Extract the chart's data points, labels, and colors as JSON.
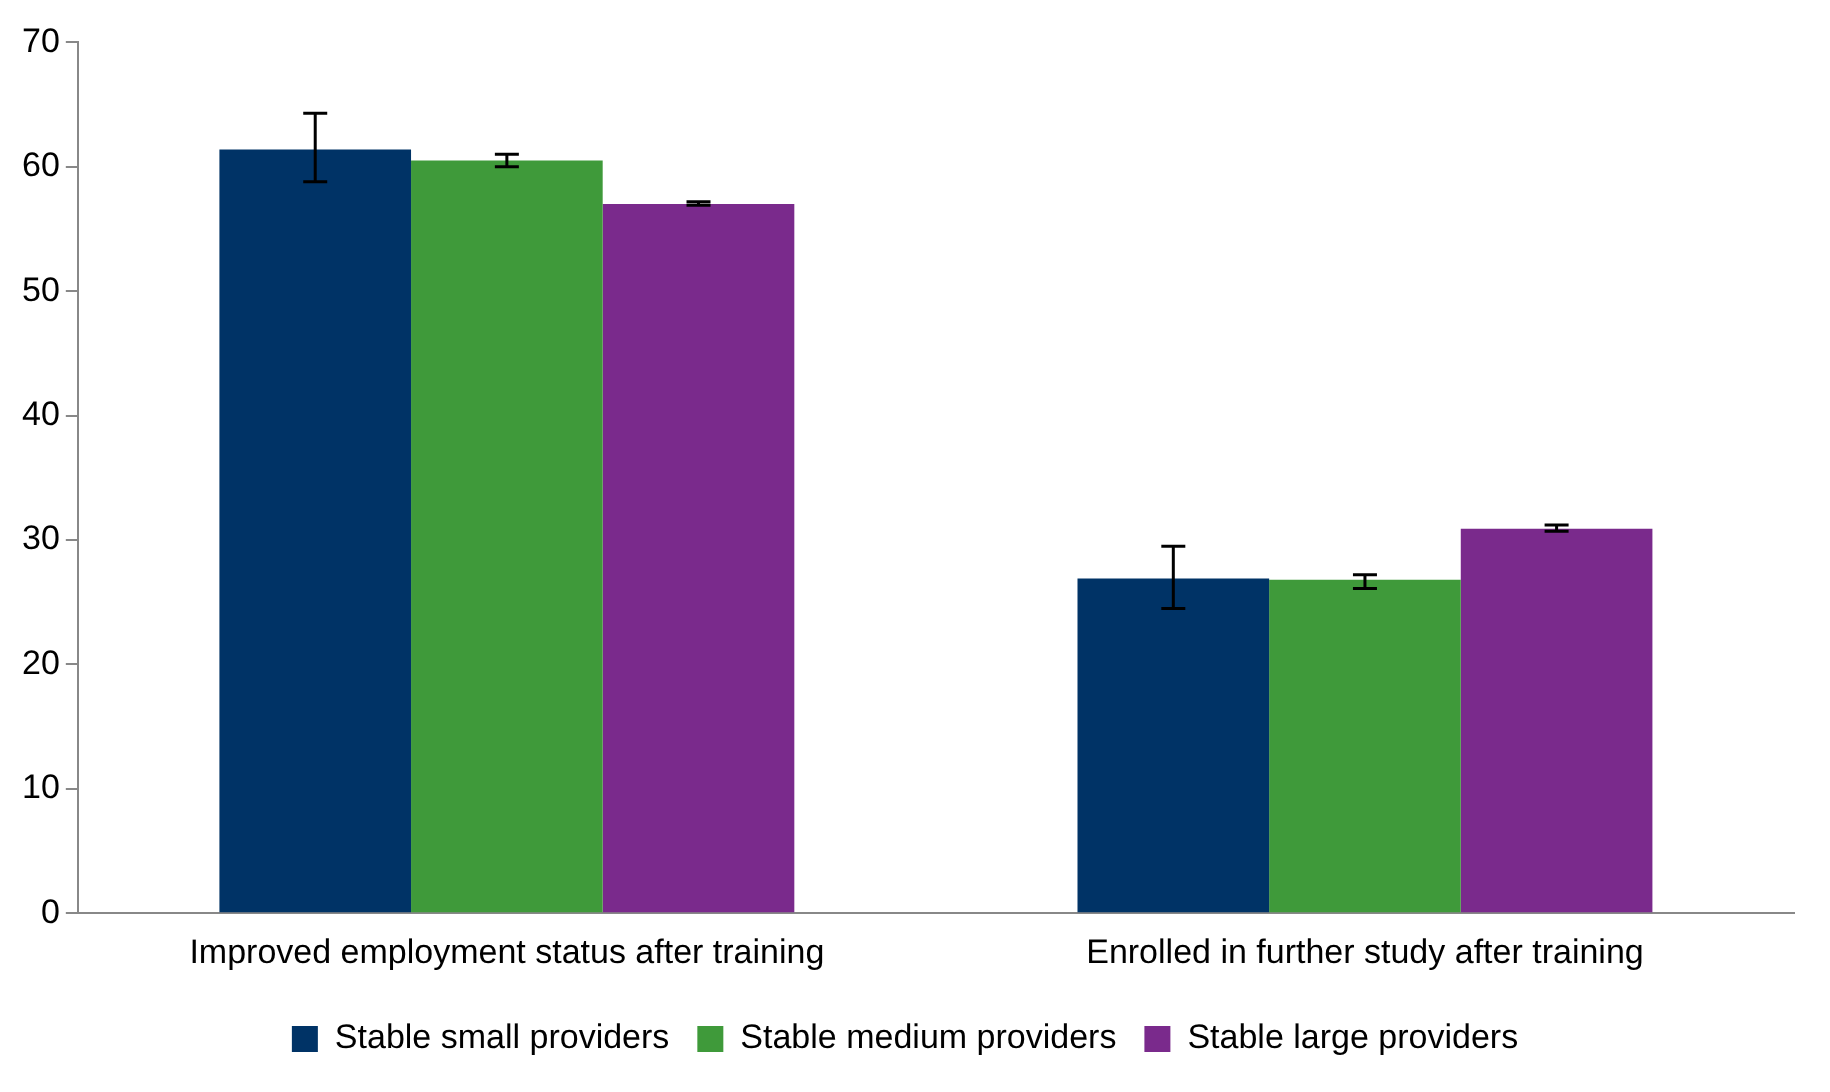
{
  "chart_data": {
    "type": "bar",
    "categories": [
      "Improved employment status after training",
      "Enrolled in further study after training"
    ],
    "series": [
      {
        "name": "Stable small providers",
        "color": "#003366",
        "values": [
          61.4,
          26.9
        ],
        "errors": [
          [
            58.8,
            64.3
          ],
          [
            24.5,
            29.5
          ]
        ]
      },
      {
        "name": "Stable medium providers",
        "color": "#3f9a3a",
        "values": [
          60.5,
          26.8
        ],
        "errors": [
          [
            60.0,
            61.0
          ],
          [
            26.1,
            27.2
          ]
        ]
      },
      {
        "name": "Stable large providers",
        "color": "#7a2a8c",
        "values": [
          57.0,
          30.9
        ],
        "errors": [
          [
            56.9,
            57.2
          ],
          [
            30.7,
            31.2
          ]
        ]
      }
    ],
    "ylim": [
      0,
      70
    ],
    "yticks": [
      0,
      10,
      20,
      30,
      40,
      50,
      60,
      70
    ],
    "grid": false,
    "legend": "bottom"
  }
}
